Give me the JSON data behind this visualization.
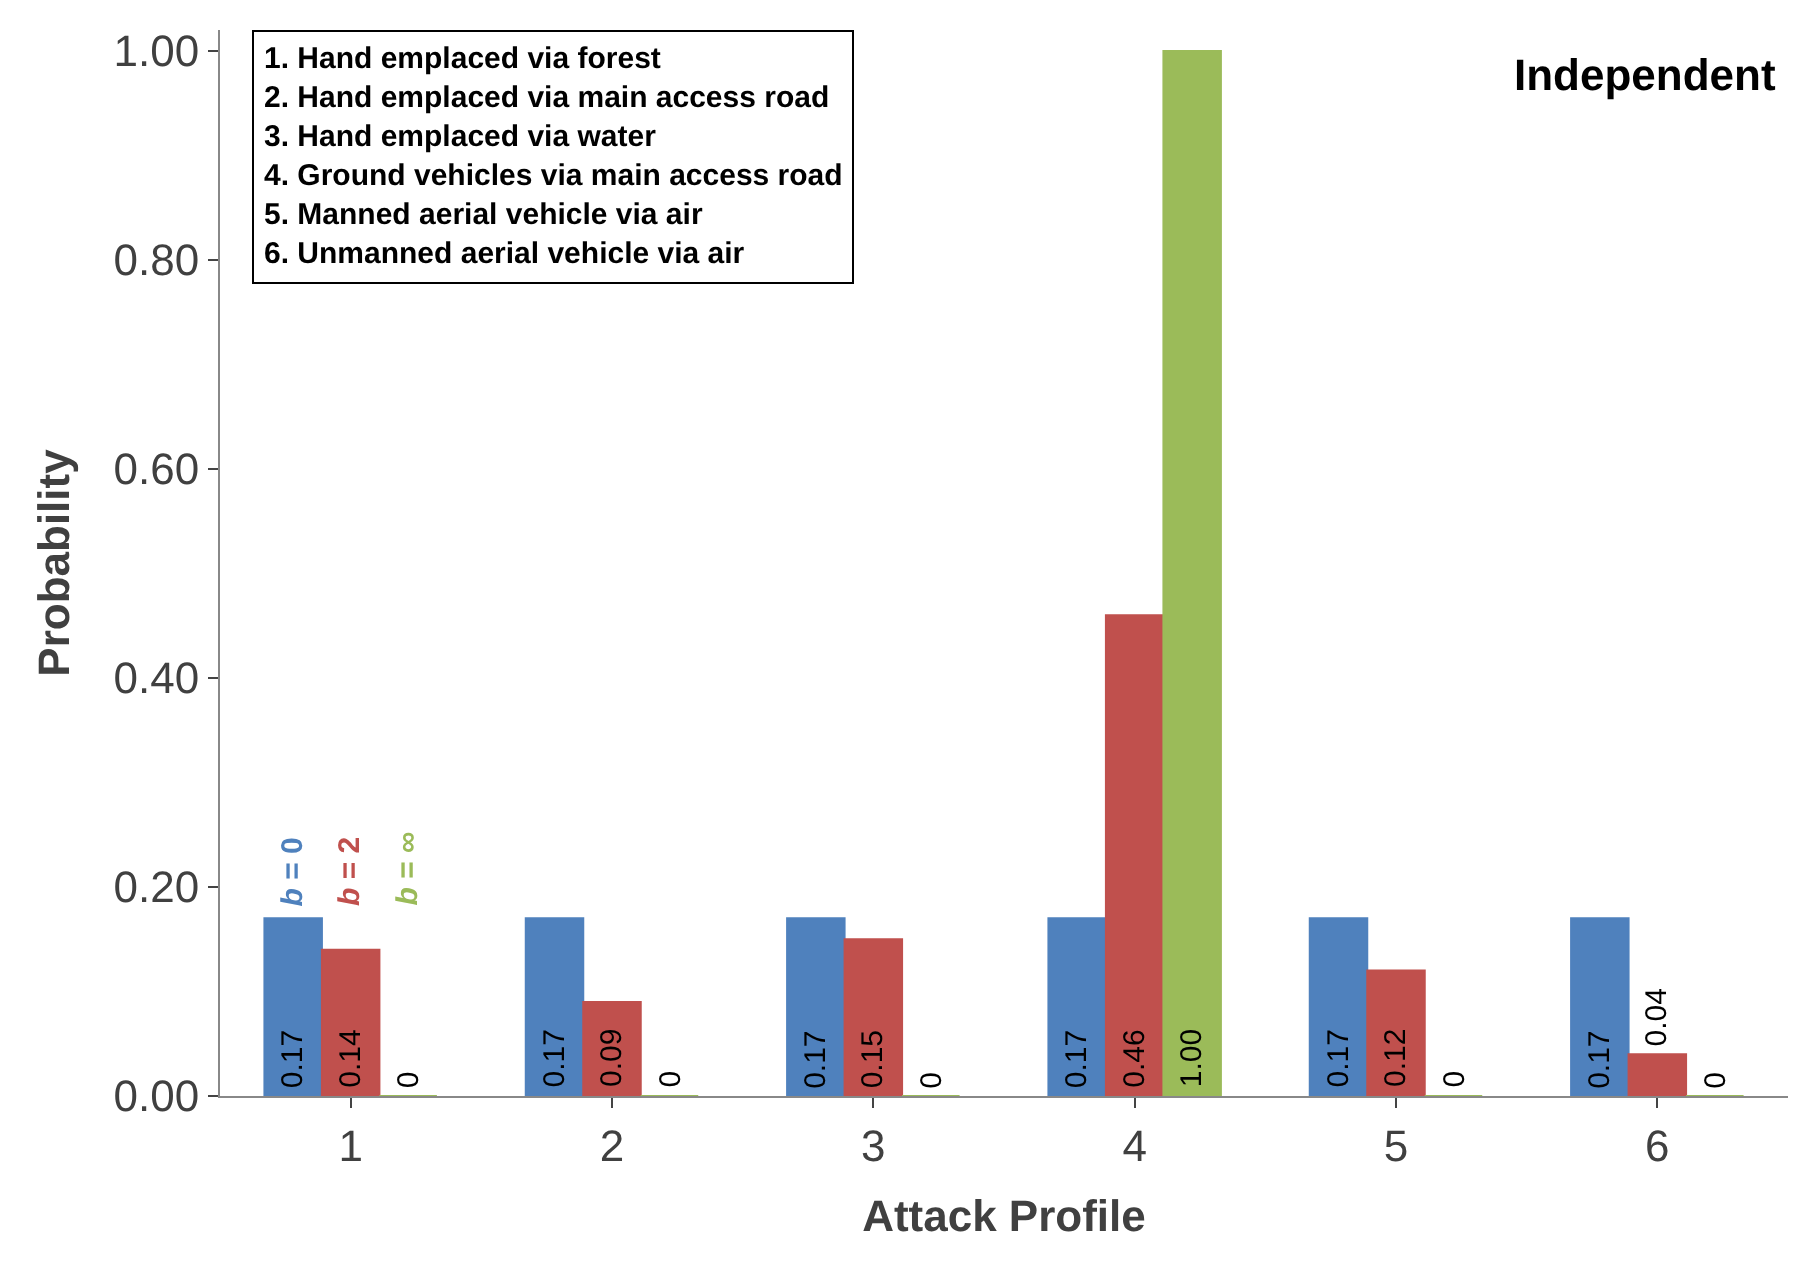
{
  "chart_data": {
    "type": "bar",
    "categories": [
      "1",
      "2",
      "3",
      "4",
      "5",
      "6"
    ],
    "xlabel": "Attack Profile",
    "ylabel": "Probability",
    "series": [
      {
        "name": "b = 0",
        "color": "#4f81bd",
        "values": [
          0.17,
          0.17,
          0.17,
          0.17,
          0.17,
          0.17
        ],
        "value_labels": [
          "0.17",
          "0.17",
          "0.17",
          "0.17",
          "0.17",
          "0.17"
        ]
      },
      {
        "name": "b = 2",
        "color": "#c0504d",
        "values": [
          0.14,
          0.09,
          0.15,
          0.46,
          0.12,
          0.04
        ],
        "value_labels": [
          "0.14",
          "0.09",
          "0.15",
          "0.46",
          "0.12",
          "0.04"
        ]
      },
      {
        "name": "b = ∞",
        "color": "#9bbb59",
        "values": [
          0,
          0,
          0,
          1.0,
          0,
          0
        ],
        "value_labels": [
          "0",
          "0",
          "0",
          "1.00",
          "0",
          "0"
        ]
      }
    ],
    "ylim": [
      0,
      1.02
    ],
    "yticks": [
      {
        "value": 0,
        "label": "0.00"
      },
      {
        "value": 0.2,
        "label": "0.20"
      },
      {
        "value": 0.4,
        "label": "0.40"
      },
      {
        "value": 0.6,
        "label": "0.60"
      },
      {
        "value": 0.8,
        "label": "0.80"
      },
      {
        "value": 1.0,
        "label": "1.00"
      }
    ],
    "grid": false,
    "legend": false,
    "annotations": [
      "1. Hand emplaced via forest\n2. Hand emplaced via main access road\n3. Hand emplaced via water\n4. Ground vehicles via main access road\n5. Manned aerial vehicle via air\n6. Unmanned aerial vehicle via air",
      "Independent"
    ]
  }
}
